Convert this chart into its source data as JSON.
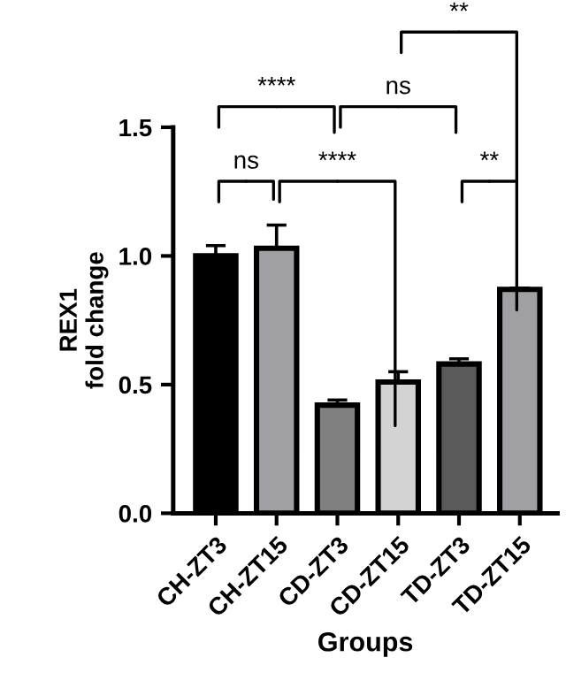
{
  "chart_data": {
    "type": "bar",
    "xlabel": "Groups",
    "ylabel": "REX1\nfold change",
    "categories": [
      "CH-ZT3",
      "CH-ZT15",
      "CD-ZT3",
      "CD-ZT15",
      "TD-ZT3",
      "TD-ZT15"
    ],
    "values": [
      1.0,
      1.03,
      0.42,
      0.51,
      0.58,
      0.87
    ],
    "errors": [
      0.04,
      0.09,
      0.02,
      0.04,
      0.02,
      0.005
    ],
    "colors": [
      "#000000",
      "#a0a0a4",
      "#808080",
      "#d3d3d3",
      "#5a5a5a",
      "#a0a0a4"
    ],
    "ylim": [
      0,
      1.5
    ],
    "yticks": [
      {
        "value": 0,
        "label": "0.0"
      },
      {
        "value": 0.5,
        "label": "0.5"
      },
      {
        "value": 1.0,
        "label": "1.0"
      },
      {
        "value": 1.5,
        "label": "1.5"
      }
    ],
    "grid": false,
    "annotations": [
      "ns",
      "****",
      "**",
      "****",
      "ns",
      "**"
    ]
  }
}
